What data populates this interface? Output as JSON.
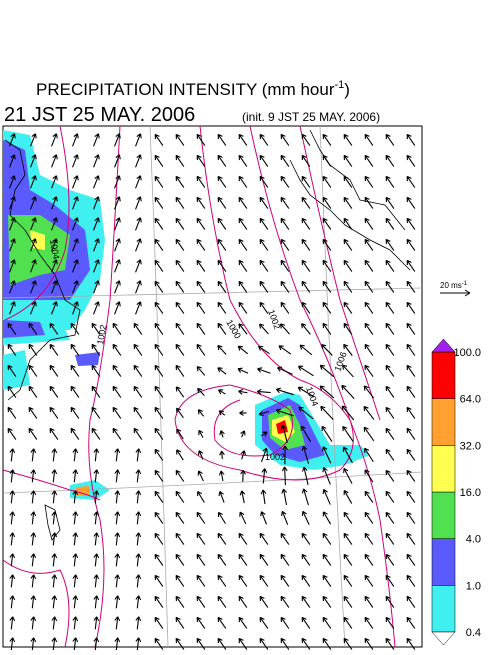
{
  "header": {
    "title": "PRECIPITATION INTENSITY (mm hour",
    "title_sup": "-1",
    "title_end": ")",
    "valid_time": "21 JST 25 MAY. 2006",
    "init_time": "(init. 9 JST 25 MAY. 2006)"
  },
  "vector_legend": {
    "label": "20 ms",
    "label_sup": "-1"
  },
  "colorbar": {
    "levels": [
      "0.4",
      "1.0",
      "4.0",
      "16.0",
      "32.0",
      "64.0",
      "100.0"
    ],
    "colors": [
      "#40f0f0",
      "#5a5aff",
      "#50e050",
      "#ffff50",
      "#ffa030",
      "#ff0000"
    ],
    "over_color": "#a020f0",
    "under_color": "#ffffff"
  },
  "contours": {
    "labels": [
      "1004",
      "1002",
      "1000",
      "1002",
      "1004",
      "1006",
      "1002"
    ]
  }
}
